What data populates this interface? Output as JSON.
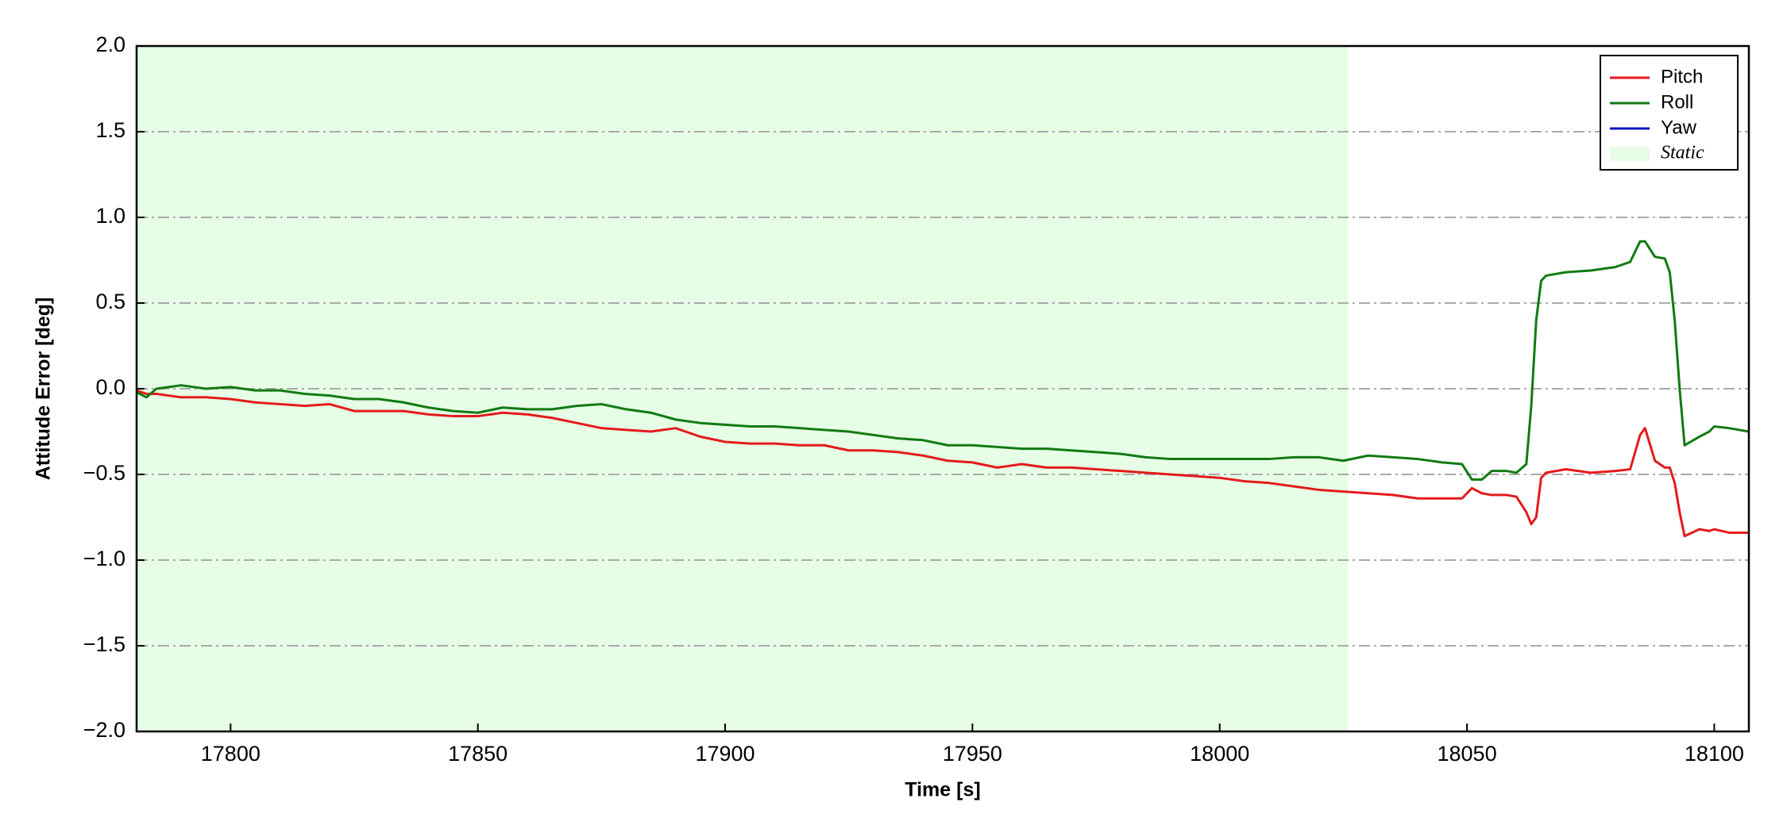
{
  "chart_data": {
    "type": "line",
    "x_label": "Time [s]",
    "y_label": "Attitude Error [deg]",
    "xlim": [
      17781,
      18107
    ],
    "ylim": [
      -2.0,
      2.0
    ],
    "xticks": [
      17800,
      17850,
      17900,
      17950,
      18000,
      18050,
      18100
    ],
    "yticks": [
      {
        "value": -2.0,
        "label": "−2.0"
      },
      {
        "value": -1.5,
        "label": "−1.5"
      },
      {
        "value": -1.0,
        "label": "−1.0"
      },
      {
        "value": -0.5,
        "label": "−0.5"
      },
      {
        "value": 0.0,
        "label": "0.0"
      },
      {
        "value": 0.5,
        "label": "0.5"
      },
      {
        "value": 1.0,
        "label": "1.0"
      },
      {
        "value": 1.5,
        "label": "1.5"
      },
      {
        "value": 2.0,
        "label": "2.0"
      }
    ],
    "grid": true,
    "legend_position": "upper right",
    "static_region": {
      "name": "Static",
      "start": 17781,
      "end": 18026,
      "color": "#e6fde6"
    },
    "x": [
      17781,
      17783,
      17785,
      17790,
      17795,
      17800,
      17805,
      17810,
      17815,
      17820,
      17825,
      17830,
      17835,
      17840,
      17845,
      17850,
      17855,
      17860,
      17865,
      17870,
      17875,
      17880,
      17885,
      17890,
      17895,
      17900,
      17905,
      17910,
      17915,
      17920,
      17925,
      17930,
      17935,
      17940,
      17945,
      17950,
      17955,
      17960,
      17965,
      17970,
      17975,
      17980,
      17985,
      17990,
      17995,
      18000,
      18005,
      18010,
      18015,
      18020,
      18025,
      18030,
      18035,
      18040,
      18045,
      18049,
      18051,
      18053,
      18055,
      18058,
      18060,
      18062,
      18063,
      18064,
      18065,
      18066,
      18070,
      18075,
      18080,
      18083,
      18085,
      18086,
      18088,
      18090,
      18091,
      18092,
      18093,
      18094,
      18097,
      18099,
      18100,
      18103,
      18107
    ],
    "series": [
      {
        "name": "Pitch",
        "color": "#e41a1c",
        "values": [
          -0.01,
          -0.03,
          -0.03,
          -0.05,
          -0.05,
          -0.06,
          -0.08,
          -0.09,
          -0.1,
          -0.09,
          -0.13,
          -0.13,
          -0.13,
          -0.15,
          -0.16,
          -0.16,
          -0.14,
          -0.15,
          -0.17,
          -0.2,
          -0.23,
          -0.24,
          -0.25,
          -0.23,
          -0.28,
          -0.31,
          -0.32,
          -0.32,
          -0.33,
          -0.33,
          -0.36,
          -0.36,
          -0.37,
          -0.39,
          -0.42,
          -0.43,
          -0.46,
          -0.44,
          -0.46,
          -0.46,
          -0.47,
          -0.48,
          -0.49,
          -0.5,
          -0.51,
          -0.52,
          -0.54,
          -0.55,
          -0.57,
          -0.59,
          -0.6,
          -0.61,
          -0.62,
          -0.64,
          -0.64,
          -0.64,
          -0.58,
          -0.61,
          -0.62,
          -0.62,
          -0.63,
          -0.72,
          -0.79,
          -0.75,
          -0.52,
          -0.49,
          -0.47,
          -0.49,
          -0.48,
          -0.47,
          -0.27,
          -0.23,
          -0.42,
          -0.46,
          -0.46,
          -0.55,
          -0.72,
          -0.86,
          -0.82,
          -0.83,
          -0.82,
          -0.84,
          -0.84
        ]
      },
      {
        "name": "Roll",
        "color": "#127a12",
        "values": [
          -0.02,
          -0.05,
          0.0,
          0.02,
          0.0,
          0.01,
          -0.01,
          -0.01,
          -0.03,
          -0.04,
          -0.06,
          -0.06,
          -0.08,
          -0.11,
          -0.13,
          -0.14,
          -0.11,
          -0.12,
          -0.12,
          -0.1,
          -0.09,
          -0.12,
          -0.14,
          -0.18,
          -0.2,
          -0.21,
          -0.22,
          -0.22,
          -0.23,
          -0.24,
          -0.25,
          -0.27,
          -0.29,
          -0.3,
          -0.33,
          -0.33,
          -0.34,
          -0.35,
          -0.35,
          -0.36,
          -0.37,
          -0.38,
          -0.4,
          -0.41,
          -0.41,
          -0.41,
          -0.41,
          -0.41,
          -0.4,
          -0.4,
          -0.42,
          -0.39,
          -0.4,
          -0.41,
          -0.43,
          -0.44,
          -0.53,
          -0.53,
          -0.48,
          -0.48,
          -0.49,
          -0.44,
          -0.1,
          0.4,
          0.63,
          0.66,
          0.68,
          0.69,
          0.71,
          0.74,
          0.86,
          0.86,
          0.77,
          0.76,
          0.68,
          0.4,
          0.0,
          -0.33,
          -0.28,
          -0.25,
          -0.22,
          -0.23,
          -0.25
        ]
      },
      {
        "name": "Yaw",
        "color": "#1010c8",
        "values": [
          null,
          null,
          null,
          null,
          null,
          null,
          null,
          null,
          null,
          null,
          null,
          null,
          null,
          null,
          null,
          null,
          null,
          null,
          null,
          null,
          null,
          null,
          null,
          null,
          null,
          null,
          null,
          null,
          null,
          null,
          null,
          null,
          null,
          null,
          null,
          null,
          null,
          null,
          null,
          null,
          null,
          null,
          null,
          null,
          null,
          null,
          null,
          null,
          null,
          null,
          null,
          null,
          null,
          null,
          null,
          null,
          null,
          null,
          null,
          null,
          null,
          null,
          null,
          null,
          null,
          null,
          null,
          null,
          null,
          null,
          null,
          null,
          null,
          null,
          null,
          null,
          null,
          null,
          null,
          null,
          null,
          null,
          null
        ]
      }
    ]
  }
}
